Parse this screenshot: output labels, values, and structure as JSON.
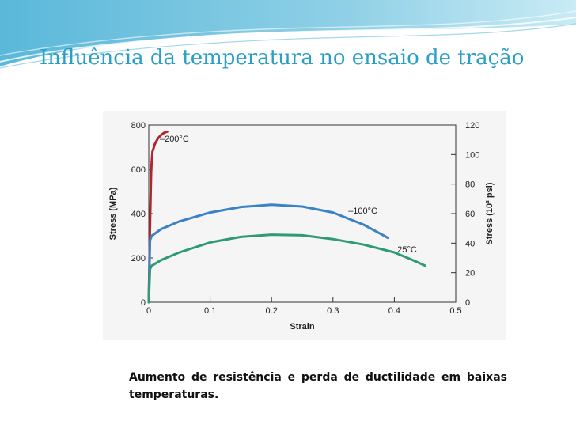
{
  "slide": {
    "title": "Influência da temperatura no ensaio de tração",
    "caption": "Aumento de resistência e perda de ductilidade em baixas temperaturas."
  },
  "theme": {
    "title_color": "#2a9fc6",
    "wave_colors": [
      "#8fd0e6",
      "#4fb2d6",
      "#c6e8f3"
    ]
  },
  "chart_data": {
    "type": "line",
    "xlabel": "Strain",
    "ylabel": "Stress (MPa)",
    "y2label": "Stress (10³ psi)",
    "xlim": [
      0,
      0.5
    ],
    "ylim": [
      0,
      800
    ],
    "y2lim": [
      0,
      120
    ],
    "xticks": [
      "0",
      "0.1",
      "0.2",
      "0.3",
      "0.4",
      "0.5"
    ],
    "yticks": [
      "0",
      "200",
      "400",
      "600",
      "800"
    ],
    "y2ticks": [
      "0",
      "20",
      "40",
      "60",
      "80",
      "100",
      "120"
    ],
    "grid": false,
    "series": [
      {
        "name": "–200°C",
        "color": "#b2242e",
        "x": [
          0,
          0.002,
          0.004,
          0.006,
          0.01,
          0.015,
          0.02,
          0.025,
          0.03
        ],
        "y": [
          0,
          350,
          600,
          680,
          715,
          740,
          755,
          765,
          770
        ]
      },
      {
        "name": "–100°C",
        "color": "#3b82c4",
        "x": [
          0,
          0.002,
          0.005,
          0.02,
          0.05,
          0.1,
          0.15,
          0.2,
          0.25,
          0.3,
          0.35,
          0.38,
          0.39
        ],
        "y": [
          0,
          280,
          300,
          330,
          365,
          405,
          430,
          440,
          432,
          405,
          350,
          305,
          290
        ]
      },
      {
        "name": "25°C",
        "color": "#2f9a73",
        "x": [
          0,
          0.002,
          0.005,
          0.02,
          0.05,
          0.1,
          0.15,
          0.2,
          0.25,
          0.3,
          0.35,
          0.4,
          0.43,
          0.45
        ],
        "y": [
          0,
          150,
          165,
          190,
          225,
          270,
          295,
          305,
          302,
          285,
          260,
          225,
          190,
          165
        ]
      }
    ],
    "annotations": [
      {
        "text": "–200°C",
        "x": 0.018,
        "y": 725
      },
      {
        "text": "–100°C",
        "x": 0.325,
        "y": 400
      },
      {
        "text": "25°C",
        "x": 0.405,
        "y": 225
      }
    ]
  }
}
